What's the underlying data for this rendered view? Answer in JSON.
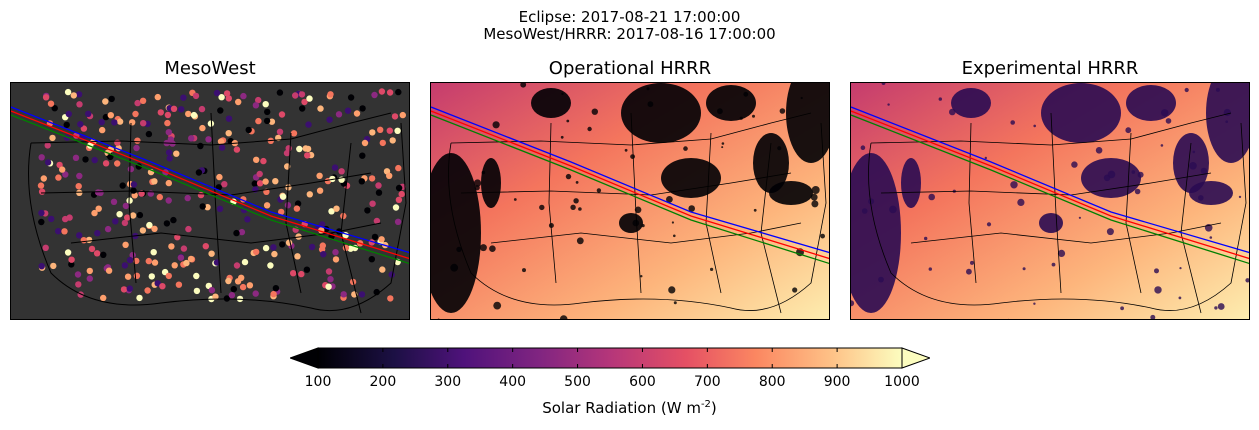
{
  "figure": {
    "title_line1": "Eclipse: 2017-08-21 17:00:00",
    "title_line2": "MesoWest/HRRR: 2017-08-16 17:00:00"
  },
  "panels": [
    {
      "title": "MesoWest",
      "kind": "stations"
    },
    {
      "title": "Operational HRRR",
      "kind": "field"
    },
    {
      "title": "Experimental HRRR",
      "kind": "field"
    }
  ],
  "colorbar": {
    "label_main": "Solar Radiation (W m",
    "label_exp": "-2",
    "label_end": ")",
    "ticks": [
      "100",
      "200",
      "300",
      "400",
      "500",
      "600",
      "700",
      "800",
      "900",
      "1000"
    ],
    "min": 100,
    "max": 1000,
    "colormap": "magma",
    "extend": "both"
  },
  "eclipse_path_colors": {
    "north_limit": "#ff0000",
    "center_line": "#0000ff",
    "south_limit": "#008000"
  },
  "background": {
    "no_data": "#333333"
  }
}
